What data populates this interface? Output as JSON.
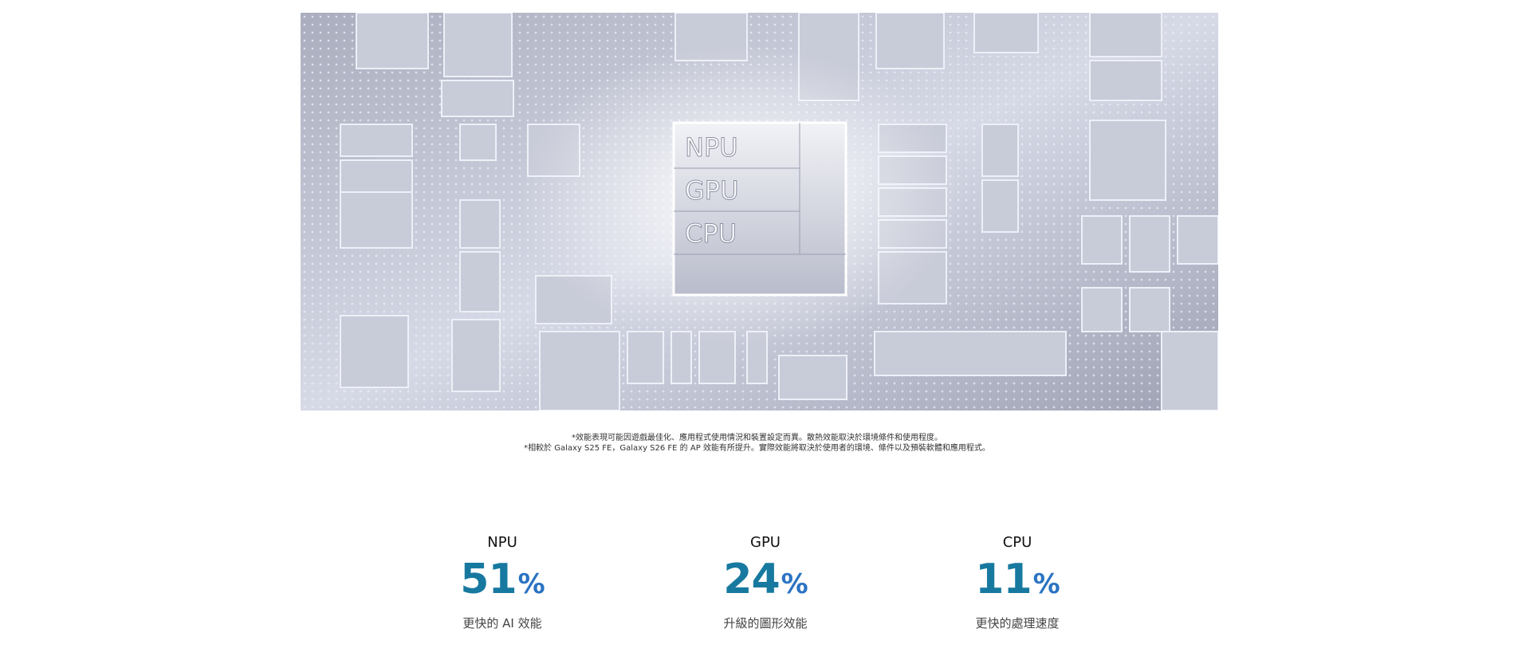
{
  "image": {
    "chip_labels": [
      "NPU",
      "GPU",
      "CPU"
    ]
  },
  "footnotes": [
    "*效能表現可能因遊戲最佳化、應用程式使用情況和裝置設定而異。散熱效能取決於環境條件和使用程度。",
    "*相較於 Galaxy S25 FE，Galaxy S26 FE 的 AP 效能有所提升。實際效能將取決於使用者的環境、條件以及預裝軟體和應用程式。"
  ],
  "stats": [
    {
      "label": "NPU",
      "value": "51",
      "unit": "%",
      "description": "更快的 AI 效能"
    },
    {
      "label": "GPU",
      "value": "24",
      "unit": "%",
      "description": "升級的圖形效能"
    },
    {
      "label": "CPU",
      "value": "11",
      "unit": "%",
      "description": "更快的處理速度"
    }
  ]
}
